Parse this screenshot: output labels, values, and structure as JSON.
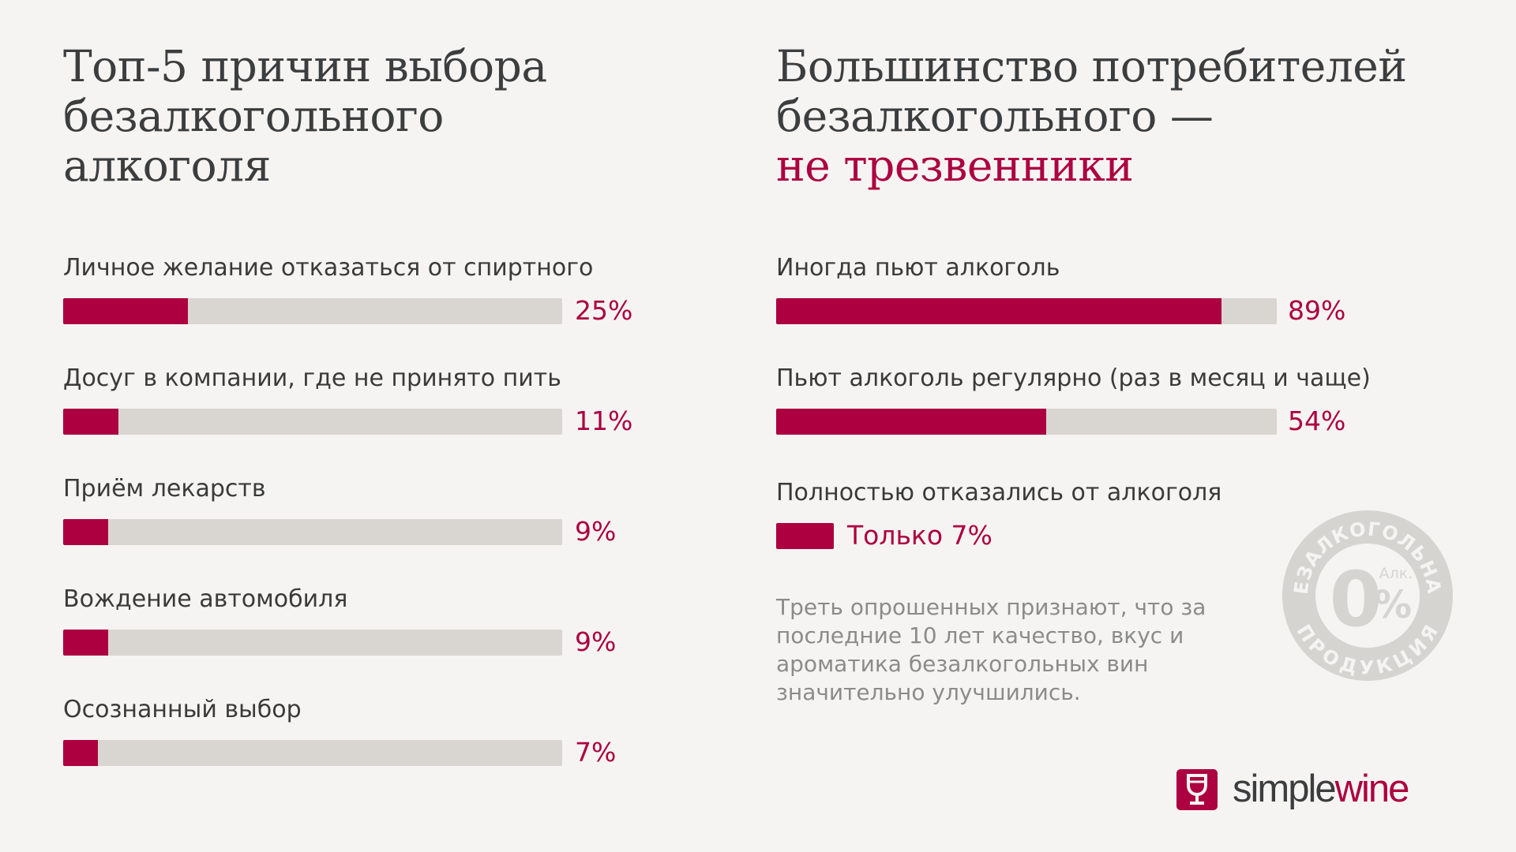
{
  "left": {
    "title": "Топ-5 причин выбора безалкогольного алкоголя"
  },
  "right": {
    "title_line1": "Большинство потребителей",
    "title_line2": "безалкогольного —",
    "title_accent": "не  трезвенники",
    "only": {
      "label": "Полностью отказались от алкоголя",
      "value_text": "Только 7%",
      "value": 7
    },
    "note": "Треть опрошенных признают, что за последние 10 лет качество, вкус и ароматика безалкогольных вин значительно улучшились."
  },
  "chart_data": [
    {
      "type": "bar",
      "orientation": "horizontal",
      "title": "Топ-5 причин выбора безалкогольного алкоголя",
      "categories": [
        "Личное желание отказаться от спиртного",
        "Досуг в компании, где не принято пить",
        "Приём лекарств",
        "Вождение автомобиля",
        "Осознанный выбор"
      ],
      "values": [
        25,
        11,
        9,
        9,
        7
      ],
      "value_labels": [
        "25%",
        "11%",
        "9%",
        "9%",
        "7%"
      ],
      "xlim": [
        0,
        100
      ],
      "unit": "%",
      "grid": false
    },
    {
      "type": "bar",
      "orientation": "horizontal",
      "title": "Большинство потребителей безалкогольного — не  трезвенники",
      "categories": [
        "Иногда пьют алкоголь",
        "Пьют алкоголь регулярно (раз в месяц и чаще)"
      ],
      "values": [
        89,
        54
      ],
      "value_labels": [
        "89%",
        "54%"
      ],
      "xlim": [
        0,
        100
      ],
      "unit": "%",
      "grid": false
    }
  ],
  "stamp": {
    "ring_top": "БЕЗАЛКОГОЛЬНАЯ",
    "ring_bottom": "ПРОДУКЦИЯ",
    "big": "0",
    "percent": "%",
    "small": "Алк."
  },
  "logo": {
    "part1": "simple",
    "part2": "wine"
  },
  "colors": {
    "background": "#f5f4f2",
    "accent": "#ac0040",
    "track": "#d9d6d1",
    "heading": "#3c3d3f",
    "note": "#8b8b8b",
    "stamp": "#cfcdca"
  }
}
